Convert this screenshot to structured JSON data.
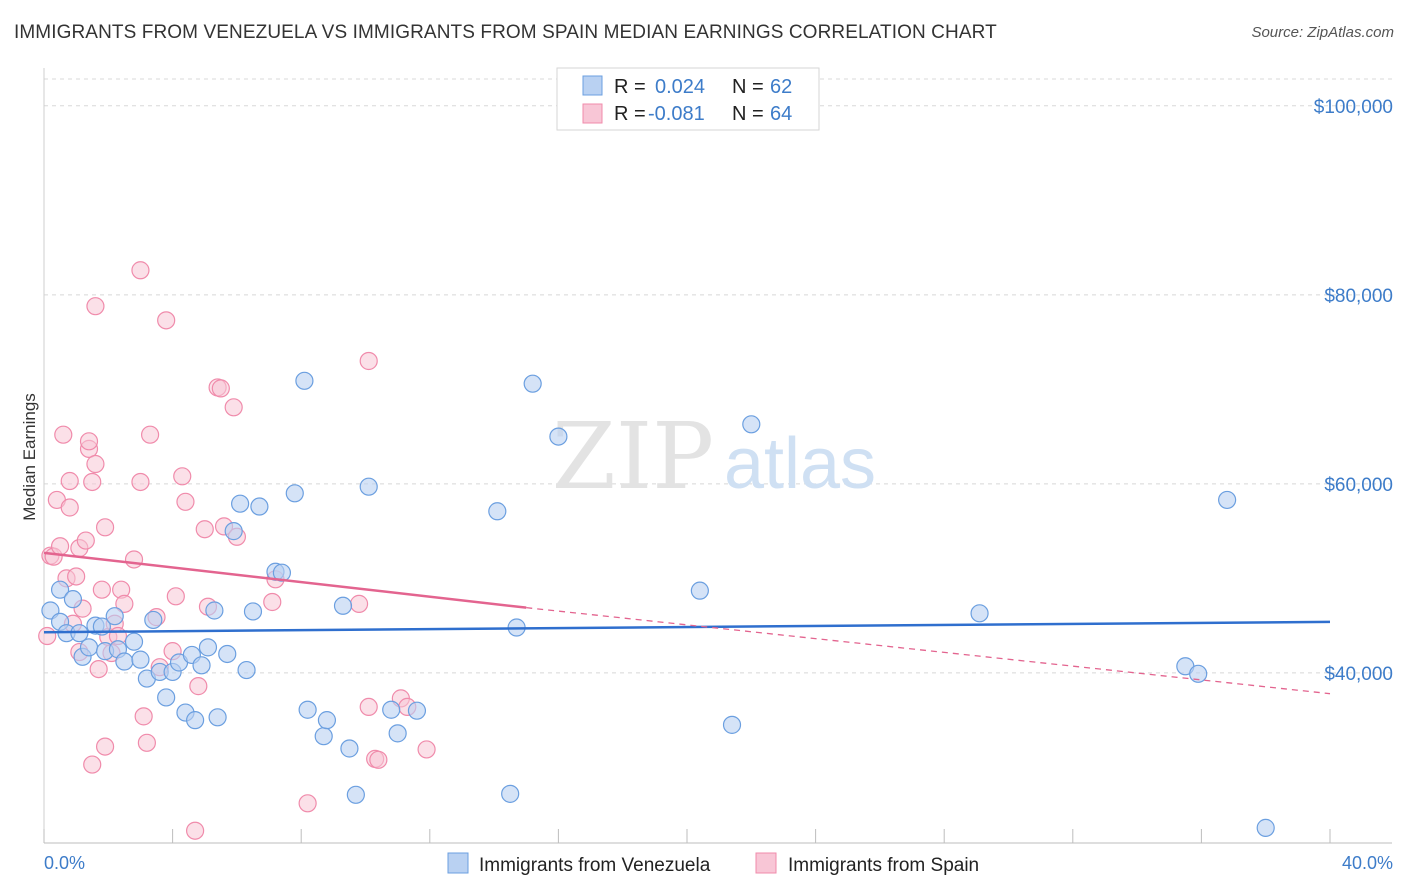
{
  "title": "IMMIGRANTS FROM VENEZUELA VS IMMIGRANTS FROM SPAIN MEDIAN EARNINGS CORRELATION CHART",
  "source": "Source: ZipAtlas.com",
  "colors": {
    "venezuela": "#6b9fe0",
    "venezuela_fill": "#b9d1f2",
    "venezuela_line": "#2f6fce",
    "spain": "#f08bab",
    "spain_fill": "#f8c6d6",
    "spain_line": "#e3648f",
    "grid": "#d8d8d8",
    "label": "#3d7cc9"
  },
  "chart_data": {
    "type": "scatter",
    "title": "IMMIGRANTS FROM VENEZUELA VS IMMIGRANTS FROM SPAIN MEDIAN EARNINGS CORRELATION CHART",
    "xlabel": "",
    "ylabel": "Median Earnings",
    "xlim": [
      0,
      40
    ],
    "ylim": [
      22000,
      104000
    ],
    "x_tick_labels": [
      "0.0%",
      "40.0%"
    ],
    "y_ticks": [
      40000,
      60000,
      80000,
      100000
    ],
    "y_tick_labels": [
      "$40,000",
      "$60,000",
      "$80,000",
      "$100,000"
    ],
    "legend": [
      {
        "name": "Immigrants from Venezuela",
        "r_label": "R =",
        "r": "0.024",
        "n_label": "N =",
        "n": "62"
      },
      {
        "name": "Immigrants from Spain",
        "r_label": "R =",
        "r": "-0.081",
        "n_label": "N =",
        "n": "64"
      }
    ],
    "watermark": {
      "zip": "ZIP",
      "atlas": "atlas"
    },
    "series": [
      {
        "name": "Immigrants from Venezuela",
        "points": [
          [
            0.2,
            46600
          ],
          [
            0.5,
            48800
          ],
          [
            0.5,
            45400
          ],
          [
            0.7,
            44200
          ],
          [
            0.9,
            47800
          ],
          [
            1.1,
            44200
          ],
          [
            1.2,
            41700
          ],
          [
            1.4,
            42700
          ],
          [
            1.6,
            45000
          ],
          [
            1.8,
            44900
          ],
          [
            1.9,
            42300
          ],
          [
            2.2,
            46000
          ],
          [
            2.3,
            42500
          ],
          [
            2.5,
            41200
          ],
          [
            2.8,
            43300
          ],
          [
            3.0,
            41400
          ],
          [
            3.2,
            39400
          ],
          [
            3.4,
            45600
          ],
          [
            3.6,
            40100
          ],
          [
            3.8,
            37400
          ],
          [
            4.0,
            40100
          ],
          [
            4.2,
            41100
          ],
          [
            4.4,
            35800
          ],
          [
            4.6,
            41900
          ],
          [
            4.7,
            35000
          ],
          [
            4.9,
            40800
          ],
          [
            5.1,
            42700
          ],
          [
            5.3,
            46600
          ],
          [
            5.4,
            35300
          ],
          [
            5.7,
            42000
          ],
          [
            5.9,
            55000
          ],
          [
            6.1,
            57900
          ],
          [
            6.3,
            40300
          ],
          [
            6.5,
            46500
          ],
          [
            6.7,
            57600
          ],
          [
            7.2,
            50700
          ],
          [
            7.4,
            50600
          ],
          [
            7.8,
            59000
          ],
          [
            8.1,
            70900
          ],
          [
            8.2,
            36100
          ],
          [
            8.7,
            33300
          ],
          [
            8.8,
            35000
          ],
          [
            9.3,
            47100
          ],
          [
            9.5,
            32000
          ],
          [
            9.7,
            27100
          ],
          [
            10.1,
            59700
          ],
          [
            10.8,
            36100
          ],
          [
            11.0,
            33600
          ],
          [
            11.6,
            36000
          ],
          [
            14.1,
            57100
          ],
          [
            14.5,
            27200
          ],
          [
            14.7,
            44800
          ],
          [
            15.2,
            70600
          ],
          [
            16.0,
            65000
          ],
          [
            20.4,
            48700
          ],
          [
            21.4,
            34500
          ],
          [
            22.0,
            66300
          ],
          [
            29.1,
            46300
          ],
          [
            35.5,
            40700
          ],
          [
            35.9,
            39900
          ],
          [
            36.8,
            58300
          ],
          [
            38.0,
            23600
          ]
        ],
        "trend": [
          [
            0,
            44300
          ],
          [
            40,
            45400
          ]
        ]
      },
      {
        "name": "Immigrants from Spain",
        "points": [
          [
            0.1,
            43900
          ],
          [
            0.2,
            52400
          ],
          [
            0.3,
            52300
          ],
          [
            0.4,
            58300
          ],
          [
            0.5,
            53400
          ],
          [
            0.6,
            65200
          ],
          [
            0.7,
            50000
          ],
          [
            0.8,
            57500
          ],
          [
            0.8,
            60300
          ],
          [
            0.9,
            45200
          ],
          [
            1.0,
            50200
          ],
          [
            1.1,
            53200
          ],
          [
            1.1,
            42200
          ],
          [
            1.2,
            46800
          ],
          [
            1.3,
            54000
          ],
          [
            1.4,
            63700
          ],
          [
            1.4,
            64500
          ],
          [
            1.5,
            60200
          ],
          [
            1.5,
            30300
          ],
          [
            1.6,
            78800
          ],
          [
            1.6,
            62100
          ],
          [
            1.7,
            40400
          ],
          [
            1.8,
            48800
          ],
          [
            1.9,
            55400
          ],
          [
            1.9,
            32200
          ],
          [
            2.0,
            43800
          ],
          [
            2.1,
            42100
          ],
          [
            2.2,
            45200
          ],
          [
            2.3,
            43900
          ],
          [
            2.4,
            48800
          ],
          [
            2.5,
            47300
          ],
          [
            2.8,
            52000
          ],
          [
            3.0,
            82600
          ],
          [
            3.0,
            60200
          ],
          [
            3.1,
            35400
          ],
          [
            3.2,
            32600
          ],
          [
            3.3,
            65200
          ],
          [
            3.5,
            45900
          ],
          [
            3.8,
            77300
          ],
          [
            4.0,
            42300
          ],
          [
            4.1,
            48100
          ],
          [
            4.3,
            60800
          ],
          [
            4.4,
            58100
          ],
          [
            4.7,
            23300
          ],
          [
            5.0,
            55200
          ],
          [
            5.1,
            47000
          ],
          [
            5.4,
            70200
          ],
          [
            5.5,
            70100
          ],
          [
            5.6,
            55500
          ],
          [
            5.9,
            68100
          ],
          [
            6.0,
            54400
          ],
          [
            7.1,
            47500
          ],
          [
            7.2,
            49900
          ],
          [
            9.8,
            47300
          ],
          [
            10.1,
            73000
          ],
          [
            10.1,
            36400
          ],
          [
            10.3,
            30900
          ],
          [
            10.4,
            30800
          ],
          [
            11.1,
            37300
          ],
          [
            11.3,
            36400
          ],
          [
            11.9,
            31900
          ],
          [
            8.2,
            26200
          ],
          [
            3.6,
            40600
          ],
          [
            4.8,
            38600
          ]
        ],
        "trend_solid": [
          [
            0,
            52700
          ],
          [
            15,
            46900
          ]
        ],
        "trend_dashed": [
          [
            15,
            46900
          ],
          [
            40,
            37800
          ]
        ]
      }
    ]
  }
}
